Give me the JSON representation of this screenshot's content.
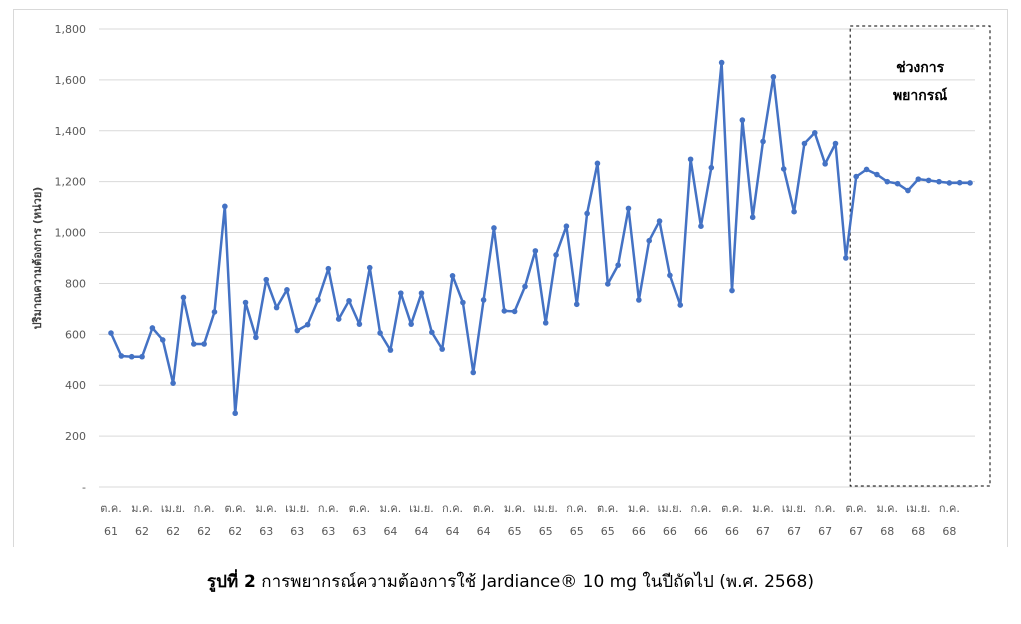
{
  "caption": {
    "label": "รูปที่ 2",
    "text": "การพยากรณ์ความต้องการใช้ Jardiance® 10 mg ในปีถัดไป (พ.ศ. 2568)"
  },
  "chart_data": {
    "type": "line",
    "ylabel": "ปริมาณความต้องการ (หน่วย)",
    "ylim": [
      0,
      1800
    ],
    "yticks": [
      0,
      200,
      400,
      600,
      800,
      1000,
      1200,
      1400,
      1600,
      1800
    ],
    "ytick_labels": [
      "-",
      "200",
      "400",
      "600",
      "800",
      "1,000",
      "1,200",
      "1,400",
      "1,600",
      "1,800"
    ],
    "grid": true,
    "line_color": "#4472c4",
    "x_tick_labels": [
      {
        "month": "ต.ค.",
        "year": "61"
      },
      {
        "month": "ม.ค.",
        "year": "62"
      },
      {
        "month": "เม.ย.",
        "year": "62"
      },
      {
        "month": "ก.ค.",
        "year": "62"
      },
      {
        "month": "ต.ค.",
        "year": "62"
      },
      {
        "month": "ม.ค.",
        "year": "63"
      },
      {
        "month": "เม.ย.",
        "year": "63"
      },
      {
        "month": "ก.ค.",
        "year": "63"
      },
      {
        "month": "ต.ค.",
        "year": "63"
      },
      {
        "month": "ม.ค.",
        "year": "64"
      },
      {
        "month": "เม.ย.",
        "year": "64"
      },
      {
        "month": "ก.ค.",
        "year": "64"
      },
      {
        "month": "ต.ค.",
        "year": "64"
      },
      {
        "month": "ม.ค.",
        "year": "65"
      },
      {
        "month": "เม.ย.",
        "year": "65"
      },
      {
        "month": "ก.ค.",
        "year": "65"
      },
      {
        "month": "ต.ค.",
        "year": "65"
      },
      {
        "month": "ม.ค.",
        "year": "66"
      },
      {
        "month": "เม.ย.",
        "year": "66"
      },
      {
        "month": "ก.ค.",
        "year": "66"
      },
      {
        "month": "ต.ค.",
        "year": "66"
      },
      {
        "month": "ม.ค.",
        "year": "67"
      },
      {
        "month": "เม.ย.",
        "year": "67"
      },
      {
        "month": "ก.ค.",
        "year": "67"
      },
      {
        "month": "ต.ค.",
        "year": "67"
      },
      {
        "month": "ม.ค.",
        "year": "68"
      },
      {
        "month": "เม.ย.",
        "year": "68"
      },
      {
        "month": "ก.ค.",
        "year": "68"
      }
    ],
    "series": [
      {
        "values": [
          605,
          515,
          512,
          512,
          625,
          578,
          408,
          745,
          562,
          562,
          688,
          1103,
          290,
          725,
          588,
          815,
          705,
          775,
          615,
          638,
          735,
          858,
          660,
          732,
          640,
          862,
          605,
          538,
          762,
          640,
          762,
          608,
          542,
          830,
          725,
          450,
          735,
          1018,
          692,
          690,
          788,
          928,
          645,
          912,
          1025,
          718,
          1075,
          1272,
          798,
          872,
          1095,
          735,
          968,
          1045,
          832,
          715,
          1288,
          1025,
          1255,
          1668,
          772,
          1442,
          1060,
          1358,
          1612,
          1250,
          1082,
          1350,
          1392,
          1270,
          1350,
          900,
          1220,
          1248,
          1228,
          1200,
          1192,
          1165,
          1210,
          1205,
          1200,
          1195,
          1196,
          1195
        ]
      }
    ],
    "forecast_label_lines": [
      "ช่วงการ",
      "พยากรณ์"
    ],
    "forecast_start_index": 72
  }
}
